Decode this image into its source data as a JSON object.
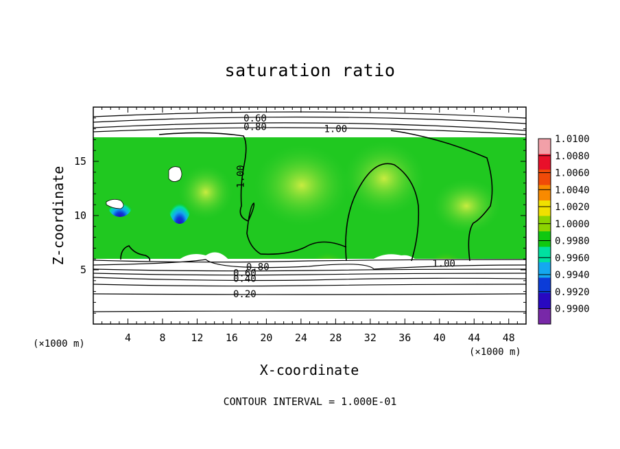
{
  "chart_data": {
    "type": "heatmap",
    "title": "saturation ratio",
    "xlabel": "X-coordinate",
    "ylabel": "Z-coordinate",
    "x_unit_left": "(×1000 m)",
    "x_unit_right": "(×1000 m)",
    "xlim": [
      0,
      50
    ],
    "ylim": [
      0,
      20
    ],
    "x_ticks": [
      4,
      8,
      12,
      16,
      20,
      24,
      28,
      32,
      36,
      40,
      44,
      48
    ],
    "y_ticks": [
      5,
      10,
      15
    ],
    "colorbar": {
      "levels": [
        "1.0100",
        "1.0080",
        "1.0060",
        "1.0040",
        "1.0020",
        "1.0000",
        "0.9980",
        "0.9960",
        "0.9940",
        "0.9920",
        "0.9900"
      ],
      "colors": [
        "#f2a0a8",
        "#e8102a",
        "#f04a08",
        "#f88a00",
        "#f0e000",
        "#8cd400",
        "#10c810",
        "#00e0a0",
        "#14a8f0",
        "#0c3cd8",
        "#2808c0",
        "#7828a8"
      ]
    },
    "contour_labels": [
      {
        "text": "0.60",
        "x": 18.7,
        "z": 19.0
      },
      {
        "text": "0.80",
        "x": 18.7,
        "z": 18.2
      },
      {
        "text": "1.00",
        "x": 28.0,
        "z": 18.0
      },
      {
        "text": "1.00",
        "x": 17.0,
        "z": 13.6
      },
      {
        "text": "0.80",
        "x": 19.0,
        "z": 5.3
      },
      {
        "text": "0.60",
        "x": 17.5,
        "z": 4.7
      },
      {
        "text": "0.40",
        "x": 17.5,
        "z": 4.2
      },
      {
        "text": "0.20",
        "x": 17.5,
        "z": 2.8
      },
      {
        "text": "1.00",
        "x": 40.5,
        "z": 5.6
      }
    ],
    "contour_interval_note": "CONTOUR INTERVAL = 1.000E-01"
  }
}
